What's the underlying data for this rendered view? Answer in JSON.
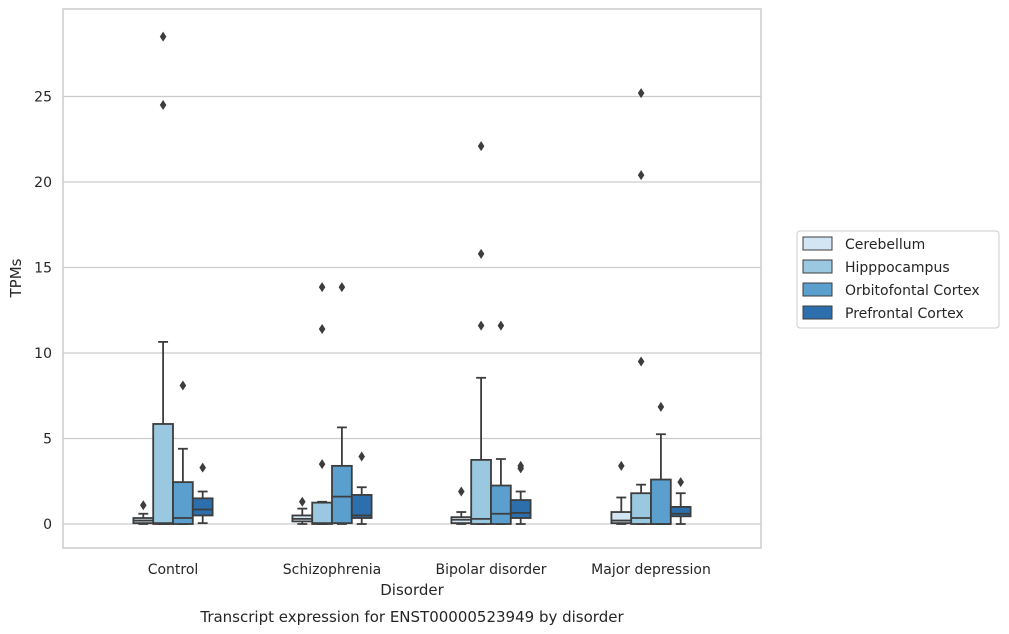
{
  "chart_data": {
    "type": "box",
    "xlabel": "Disorder",
    "ylabel": "TPMs",
    "caption": "Transcript expression for ENST00000523949 by disorder",
    "categories": [
      "Control",
      "Schizophrenia",
      "Bipolar disorder",
      "Major depression"
    ],
    "yticks": [
      0,
      5,
      10,
      15,
      20,
      25
    ],
    "ylim": [
      -1.4,
      30.1
    ],
    "grid": "horizontal",
    "legend_position": "right-center",
    "series": [
      {
        "name": "Cerebellum",
        "color": "#d3e4f3",
        "boxes": [
          {
            "whislo": 0.0,
            "q1": 0.05,
            "med": 0.2,
            "q3": 0.35,
            "whishi": 0.6,
            "fliers": [
              1.1
            ]
          },
          {
            "whislo": 0.0,
            "q1": 0.15,
            "med": 0.3,
            "q3": 0.5,
            "whishi": 0.9,
            "fliers": [
              1.3
            ]
          },
          {
            "whislo": 0.0,
            "q1": 0.05,
            "med": 0.25,
            "q3": 0.4,
            "whishi": 0.7,
            "fliers": [
              1.9
            ]
          },
          {
            "whislo": 0.0,
            "q1": 0.05,
            "med": 0.2,
            "q3": 0.7,
            "whishi": 1.55,
            "fliers": [
              3.4
            ]
          }
        ]
      },
      {
        "name": "Hipppocampus",
        "color": "#9ac8e0",
        "boxes": [
          {
            "whislo": 0.0,
            "q1": 0.0,
            "med": 0.05,
            "q3": 5.85,
            "whishi": 10.65,
            "fliers": [
              24.5,
              28.5
            ]
          },
          {
            "whislo": 0.0,
            "q1": 0.0,
            "med": 0.05,
            "q3": 1.25,
            "whishi": 1.3,
            "fliers": [
              3.5,
              11.4,
              13.85
            ]
          },
          {
            "whislo": 0.0,
            "q1": 0.0,
            "med": 0.3,
            "q3": 3.75,
            "whishi": 8.55,
            "fliers": [
              11.6,
              15.8,
              22.1
            ]
          },
          {
            "whislo": 0.0,
            "q1": 0.0,
            "med": 0.35,
            "q3": 1.8,
            "whishi": 2.3,
            "fliers": [
              9.5,
              20.4,
              25.2
            ]
          }
        ]
      },
      {
        "name": "Orbitofontal Cortex",
        "color": "#5a9fcd",
        "boxes": [
          {
            "whislo": 0.0,
            "q1": 0.0,
            "med": 0.35,
            "q3": 2.45,
            "whishi": 4.4,
            "fliers": [
              8.1
            ]
          },
          {
            "whislo": 0.0,
            "q1": 0.05,
            "med": 1.6,
            "q3": 3.4,
            "whishi": 5.65,
            "fliers": [
              13.85
            ]
          },
          {
            "whislo": 0.0,
            "q1": 0.0,
            "med": 0.6,
            "q3": 2.25,
            "whishi": 3.8,
            "fliers": [
              11.6
            ]
          },
          {
            "whislo": 0.0,
            "q1": 0.0,
            "med": 0.0,
            "q3": 2.6,
            "whishi": 5.25,
            "fliers": [
              6.85
            ]
          }
        ]
      },
      {
        "name": "Prefrontal Cortex",
        "color": "#2d6fad",
        "boxes": [
          {
            "whislo": 0.05,
            "q1": 0.5,
            "med": 0.85,
            "q3": 1.5,
            "whishi": 1.9,
            "fliers": [
              3.3
            ]
          },
          {
            "whislo": 0.0,
            "q1": 0.35,
            "med": 0.5,
            "q3": 1.7,
            "whishi": 2.15,
            "fliers": [
              3.95
            ]
          },
          {
            "whislo": 0.0,
            "q1": 0.35,
            "med": 0.65,
            "q3": 1.4,
            "whishi": 1.9,
            "fliers": [
              3.25,
              3.4
            ]
          },
          {
            "whislo": 0.0,
            "q1": 0.45,
            "med": 0.6,
            "q3": 1.0,
            "whishi": 1.8,
            "fliers": [
              2.45
            ]
          }
        ]
      }
    ]
  }
}
